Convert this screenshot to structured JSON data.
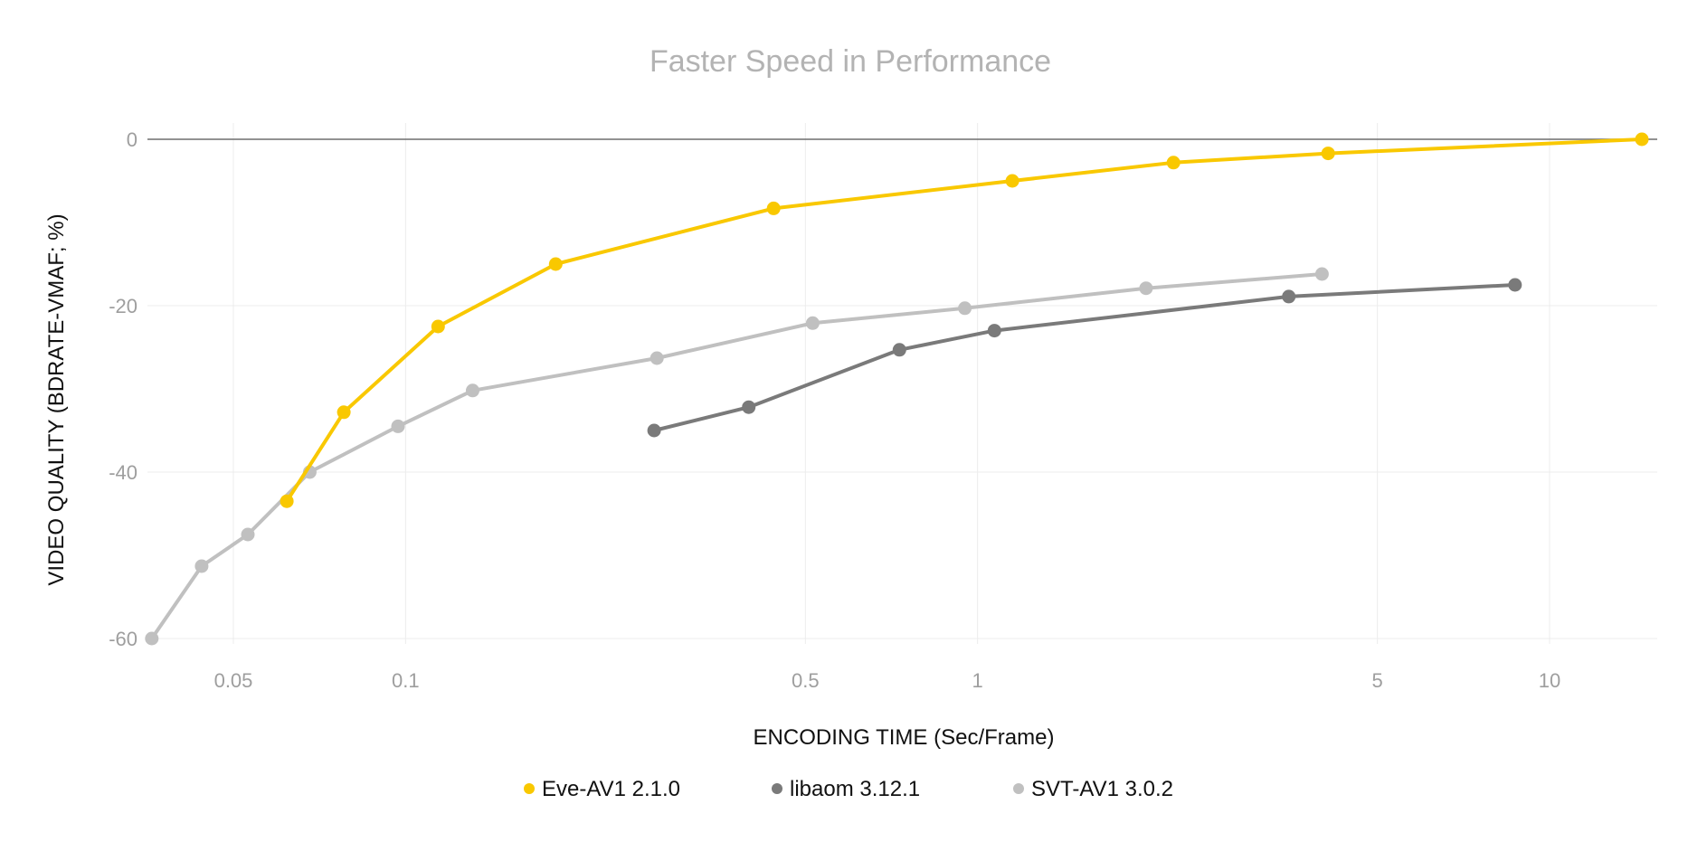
{
  "chart_data": {
    "type": "line",
    "title": "Faster Speed in Performance",
    "xlabel": "ENCODING TIME (Sec/Frame)",
    "ylabel": "VIDEO QUALITY (BDRATE-VMAF; %)",
    "x_scale": "log",
    "xlim": [
      0.029,
      15.5
    ],
    "ylim": [
      -61,
      0
    ],
    "x_ticks": [
      {
        "value": 0.05,
        "label": "0.05"
      },
      {
        "value": 0.1,
        "label": "0.1"
      },
      {
        "value": 0.5,
        "label": "0.5"
      },
      {
        "value": 1,
        "label": "1"
      },
      {
        "value": 5,
        "label": "5"
      },
      {
        "value": 10,
        "label": "10"
      }
    ],
    "y_ticks": [
      {
        "value": 0,
        "label": "0"
      },
      {
        "value": -20,
        "label": "-20"
      },
      {
        "value": -40,
        "label": "-40"
      },
      {
        "value": -60,
        "label": "-60"
      }
    ],
    "grid": true,
    "legend_position": "bottom",
    "series": [
      {
        "name": "Eve-AV1 2.1.0",
        "color": "#f9c800",
        "points": [
          {
            "x": 0.062,
            "y": -43.5
          },
          {
            "x": 0.078,
            "y": -32.8
          },
          {
            "x": 0.114,
            "y": -22.5
          },
          {
            "x": 0.183,
            "y": -15.0
          },
          {
            "x": 0.44,
            "y": -8.3
          },
          {
            "x": 1.15,
            "y": -5.0
          },
          {
            "x": 2.2,
            "y": -2.8
          },
          {
            "x": 4.1,
            "y": -1.7
          },
          {
            "x": 14.5,
            "y": 0.0
          }
        ]
      },
      {
        "name": "libaom 3.12.1",
        "color": "#7a7a7a",
        "points": [
          {
            "x": 0.272,
            "y": -35.0
          },
          {
            "x": 0.398,
            "y": -32.2
          },
          {
            "x": 0.73,
            "y": -25.3
          },
          {
            "x": 1.07,
            "y": -23.0
          },
          {
            "x": 3.5,
            "y": -18.9
          },
          {
            "x": 8.7,
            "y": -17.5
          }
        ]
      },
      {
        "name": "SVT-AV1 3.0.2",
        "color": "#c0c0c0",
        "points": [
          {
            "x": 0.036,
            "y": -60.0
          },
          {
            "x": 0.044,
            "y": -51.3
          },
          {
            "x": 0.053,
            "y": -47.5
          },
          {
            "x": 0.068,
            "y": -40.0
          },
          {
            "x": 0.097,
            "y": -34.5
          },
          {
            "x": 0.131,
            "y": -30.2
          },
          {
            "x": 0.275,
            "y": -26.3
          },
          {
            "x": 0.515,
            "y": -22.1
          },
          {
            "x": 0.95,
            "y": -20.3
          },
          {
            "x": 1.97,
            "y": -17.9
          },
          {
            "x": 4.0,
            "y": -16.2
          }
        ]
      }
    ]
  }
}
